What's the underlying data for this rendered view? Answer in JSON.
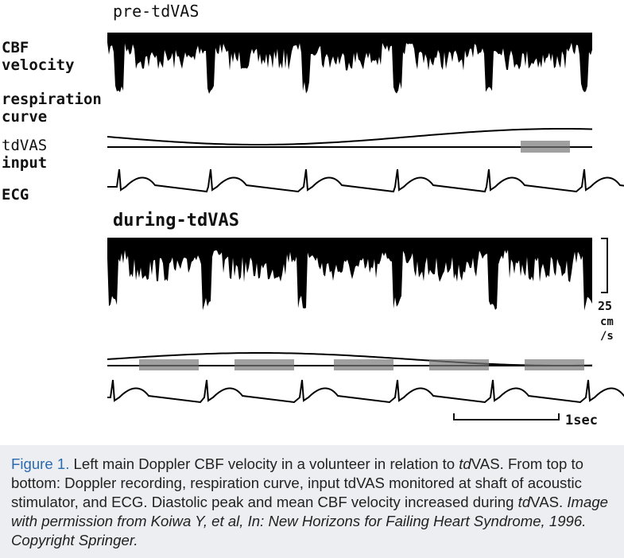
{
  "figure": {
    "pre_title": "pre-tdVAS",
    "labels": {
      "cbf": [
        "CBF",
        "velocity"
      ],
      "respiration": [
        "respiration",
        "curve"
      ],
      "tdvas": [
        "tdVAS",
        "input"
      ],
      "ecg": "ECG"
    },
    "during_title": "during-tdVAS",
    "velocity_scale": [
      "25",
      "cm",
      "/s"
    ],
    "time_scale": "1sec"
  },
  "caption": {
    "label": "Figure 1.",
    "segments": [
      {
        "text": " Left main Doppler CBF velocity in a volunteer in relation to ",
        "italic": false
      },
      {
        "text": "td",
        "italic": true
      },
      {
        "text": "VAS. From top to bottom: Doppler recording, respiration curve, input tdVAS monitored at shaft of acoustic stimulator, and ECG. Diastolic peak and mean CBF velocity increased during ",
        "italic": false
      },
      {
        "text": "td",
        "italic": true
      },
      {
        "text": "VAS. ",
        "italic": false
      },
      {
        "text": "Image with permission from Koiwa Y, et al, In: New Horizons for Failing Heart Syndrome, 1996. Copyright Springer.",
        "italic": true
      }
    ]
  }
}
